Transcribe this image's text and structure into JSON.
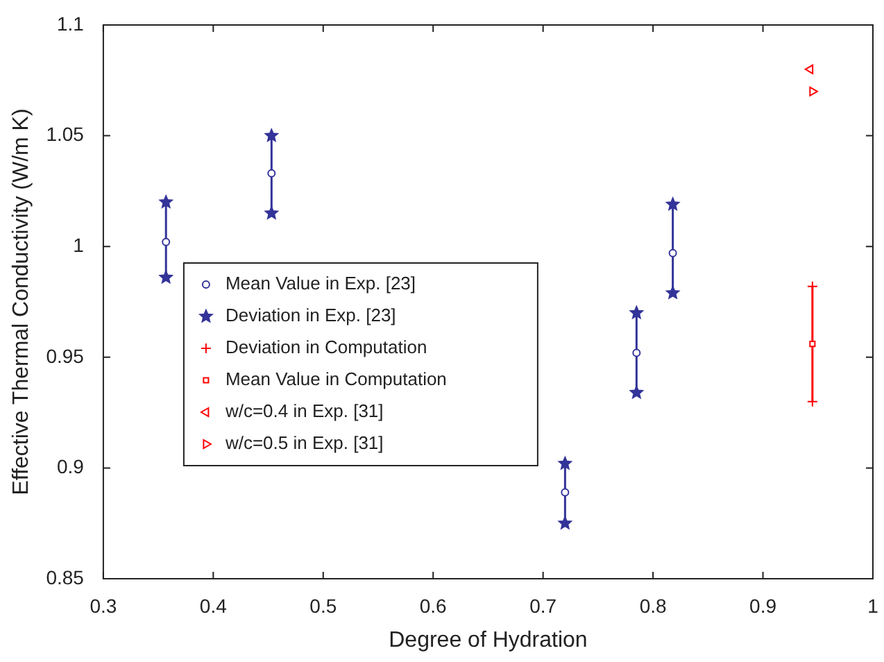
{
  "chart_data": {
    "type": "scatter",
    "xlabel": "Degree of Hydration",
    "ylabel": "Effective Thermal Conductivity (W/m K)",
    "xlim": [
      0.3,
      1
    ],
    "xticks": [
      0.3,
      0.4,
      0.5,
      0.6,
      0.7,
      0.8,
      0.9,
      1
    ],
    "ylim": [
      0.85,
      1.1
    ],
    "yticks": [
      0.85,
      0.9,
      0.95,
      1,
      1.05,
      1.1
    ],
    "grid": false,
    "legend": "center left",
    "series": [
      {
        "name": "Mean Value in Exp. [23]",
        "color": "#333399",
        "marker": "circle",
        "x": [
          0.357,
          0.453,
          0.72,
          0.785,
          0.818
        ],
        "values": [
          1.002,
          1.033,
          0.889,
          0.952,
          0.997
        ],
        "errors": [
          [
            0.986,
            1.02
          ],
          [
            1.015,
            1.05
          ],
          [
            0.875,
            0.902
          ],
          [
            0.934,
            0.97
          ],
          [
            0.979,
            1.019
          ]
        ]
      },
      {
        "name": "Deviation in Exp. [23]",
        "color": "#333399",
        "marker": "star",
        "x": [
          0.357,
          0.357,
          0.453,
          0.453,
          0.72,
          0.72,
          0.785,
          0.785,
          0.818,
          0.818
        ],
        "values": [
          0.986,
          1.02,
          1.015,
          1.05,
          0.875,
          0.902,
          0.934,
          0.97,
          0.979,
          1.019
        ]
      },
      {
        "name": "Deviation in Computation",
        "color": "#ff0000",
        "marker": "cross",
        "x": [
          0.945,
          0.945
        ],
        "values": [
          0.93,
          0.982
        ]
      },
      {
        "name": "Mean Value in Computation",
        "color": "#ff0000",
        "marker": "square",
        "x": [
          0.945
        ],
        "values": [
          0.956
        ],
        "errors": [
          [
            0.93,
            0.982
          ]
        ]
      },
      {
        "name": "w/c=0.4 in Exp. [31]",
        "color": "#ff0000",
        "marker": "triangle-left",
        "x": [
          0.943
        ],
        "values": [
          1.08
        ]
      },
      {
        "name": "w/c=0.5 in Exp. [31]",
        "color": "#ff0000",
        "marker": "triangle-right",
        "x": [
          0.945
        ],
        "values": [
          1.07
        ]
      }
    ]
  }
}
